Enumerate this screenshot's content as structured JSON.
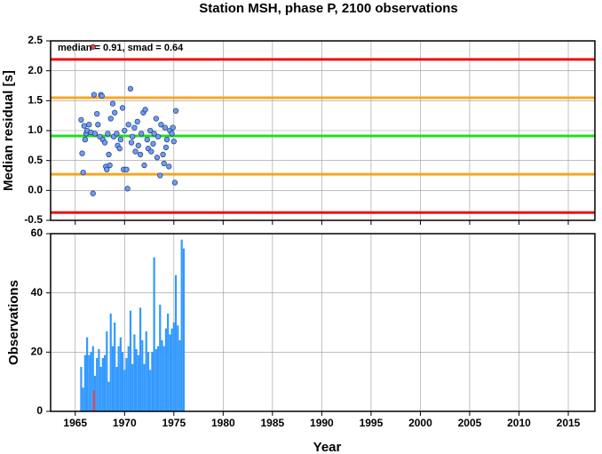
{
  "chart_data": [
    {
      "type": "scatter",
      "title": "Station MSH, phase P, 2100 observations",
      "annotation": "median = 0.91, smad = 0.64",
      "ylabel": "Median residual [s]",
      "xlim": [
        1962.5,
        2017.7
      ],
      "xticks": [
        1965,
        1970,
        1975,
        1980,
        1985,
        1990,
        1995,
        2000,
        2005,
        2010,
        2015
      ],
      "ylim": [
        -0.5,
        2.5
      ],
      "yticks": [
        2.5,
        {
          "value": 2,
          "label": "2.0"
        },
        1.5,
        {
          "value": 1,
          "label": "1.0"
        },
        0.5,
        {
          "value": 0,
          "label": "0.0"
        },
        -0.5
      ],
      "grid": true,
      "hlines": [
        {
          "value": 2.19,
          "color": "#ee1111"
        },
        {
          "value": 1.55,
          "color": "#f5a623"
        },
        {
          "value": 0.91,
          "color": "#22dd22"
        },
        {
          "value": 0.27,
          "color": "#f5a623"
        },
        {
          "value": -0.37,
          "color": "#ee1111"
        }
      ],
      "series": [
        {
          "color": "#6f9cf0",
          "x": [
            1965.6,
            1965.7,
            1965.8,
            1965.9,
            1966.0,
            1966.1,
            1966.2,
            1966.4,
            1966.6,
            1966.8,
            1966.9,
            1967.0,
            1967.2,
            1967.3,
            1967.5,
            1967.6,
            1967.7,
            1967.8,
            1968.0,
            1968.1,
            1968.2,
            1968.3,
            1968.4,
            1968.5,
            1968.6,
            1968.8,
            1968.9,
            1969.0,
            1969.2,
            1969.3,
            1969.5,
            1969.6,
            1969.8,
            1969.9,
            1970.0,
            1970.2,
            1970.3,
            1970.4,
            1970.6,
            1970.7,
            1970.8,
            1971.0,
            1971.1,
            1971.3,
            1971.4,
            1971.6,
            1971.7,
            1971.9,
            1972.0,
            1972.1,
            1972.3,
            1972.4,
            1972.6,
            1972.7,
            1972.9,
            1973.0,
            1973.2,
            1973.3,
            1973.4,
            1973.6,
            1973.7,
            1973.9,
            1974.0,
            1974.1,
            1974.2,
            1974.3,
            1974.5,
            1974.6,
            1974.8,
            1974.9,
            1975.0,
            1975.1,
            1975.2
          ],
          "values": [
            1.18,
            0.62,
            0.3,
            1.08,
            0.85,
            0.95,
            1.0,
            1.1,
            0.97,
            -0.05,
            1.6,
            0.95,
            1.28,
            1.1,
            0.9,
            1.6,
            1.58,
            0.85,
            0.8,
            0.4,
            0.35,
            0.95,
            0.6,
            0.42,
            1.2,
            1.45,
            0.9,
            1.3,
            0.95,
            0.75,
            0.7,
            0.85,
            1.38,
            0.35,
            1.0,
            0.35,
            0.03,
            1.1,
            1.7,
            0.8,
            0.9,
            1.05,
            0.65,
            1.15,
            0.75,
            0.6,
            0.95,
            1.3,
            0.42,
            1.35,
            0.85,
            0.7,
            1.0,
            0.65,
            0.78,
            0.95,
            1.2,
            0.55,
            0.9,
            0.25,
            1.1,
            0.6,
            0.45,
            1.05,
            0.72,
            0.85,
            0.4,
            1.0,
            0.95,
            1.05,
            0.82,
            0.13,
            1.33
          ]
        },
        {
          "color": "#ee4444",
          "x": [
            1966.8
          ],
          "values": [
            2.4
          ]
        }
      ]
    },
    {
      "type": "bar",
      "xlabel": "Year",
      "ylabel": "Observations",
      "xlim": [
        1962.5,
        2017.7
      ],
      "xticks": [
        1965,
        1970,
        1975,
        1980,
        1985,
        1990,
        1995,
        2000,
        2005,
        2010,
        2015
      ],
      "ylim": [
        0,
        60
      ],
      "yticks": [
        0,
        20,
        40,
        60
      ],
      "grid": true,
      "series": [
        {
          "color": "#3399ff",
          "x": [
            1965.6,
            1965.8,
            1966.0,
            1966.2,
            1966.4,
            1966.6,
            1966.8,
            1967.0,
            1967.2,
            1967.4,
            1967.6,
            1967.8,
            1968.0,
            1968.2,
            1968.4,
            1968.6,
            1968.8,
            1969.0,
            1969.2,
            1969.4,
            1969.6,
            1969.8,
            1970.0,
            1970.2,
            1970.4,
            1970.6,
            1970.8,
            1971.0,
            1971.2,
            1971.4,
            1971.6,
            1971.8,
            1972.0,
            1972.2,
            1972.4,
            1972.6,
            1972.8,
            1973.0,
            1973.2,
            1973.4,
            1973.6,
            1973.8,
            1974.0,
            1974.2,
            1974.4,
            1974.6,
            1974.8,
            1975.0,
            1975.2,
            1975.4,
            1975.6,
            1975.8,
            1976.0
          ],
          "values": [
            15,
            8,
            19,
            25,
            19,
            20,
            22,
            12,
            18,
            21,
            15,
            18,
            19,
            27,
            10,
            33,
            22,
            30,
            15,
            22,
            25,
            20,
            14,
            18,
            22,
            34,
            16,
            26,
            21,
            19,
            35,
            24,
            16,
            27,
            20,
            14,
            20,
            52,
            21,
            22,
            36,
            24,
            22,
            28,
            33,
            26,
            28,
            30,
            46,
            29,
            24,
            58,
            55
          ]
        },
        {
          "color": "#ee4444",
          "x": [
            1966.9
          ],
          "values": [
            7
          ]
        }
      ]
    }
  ]
}
